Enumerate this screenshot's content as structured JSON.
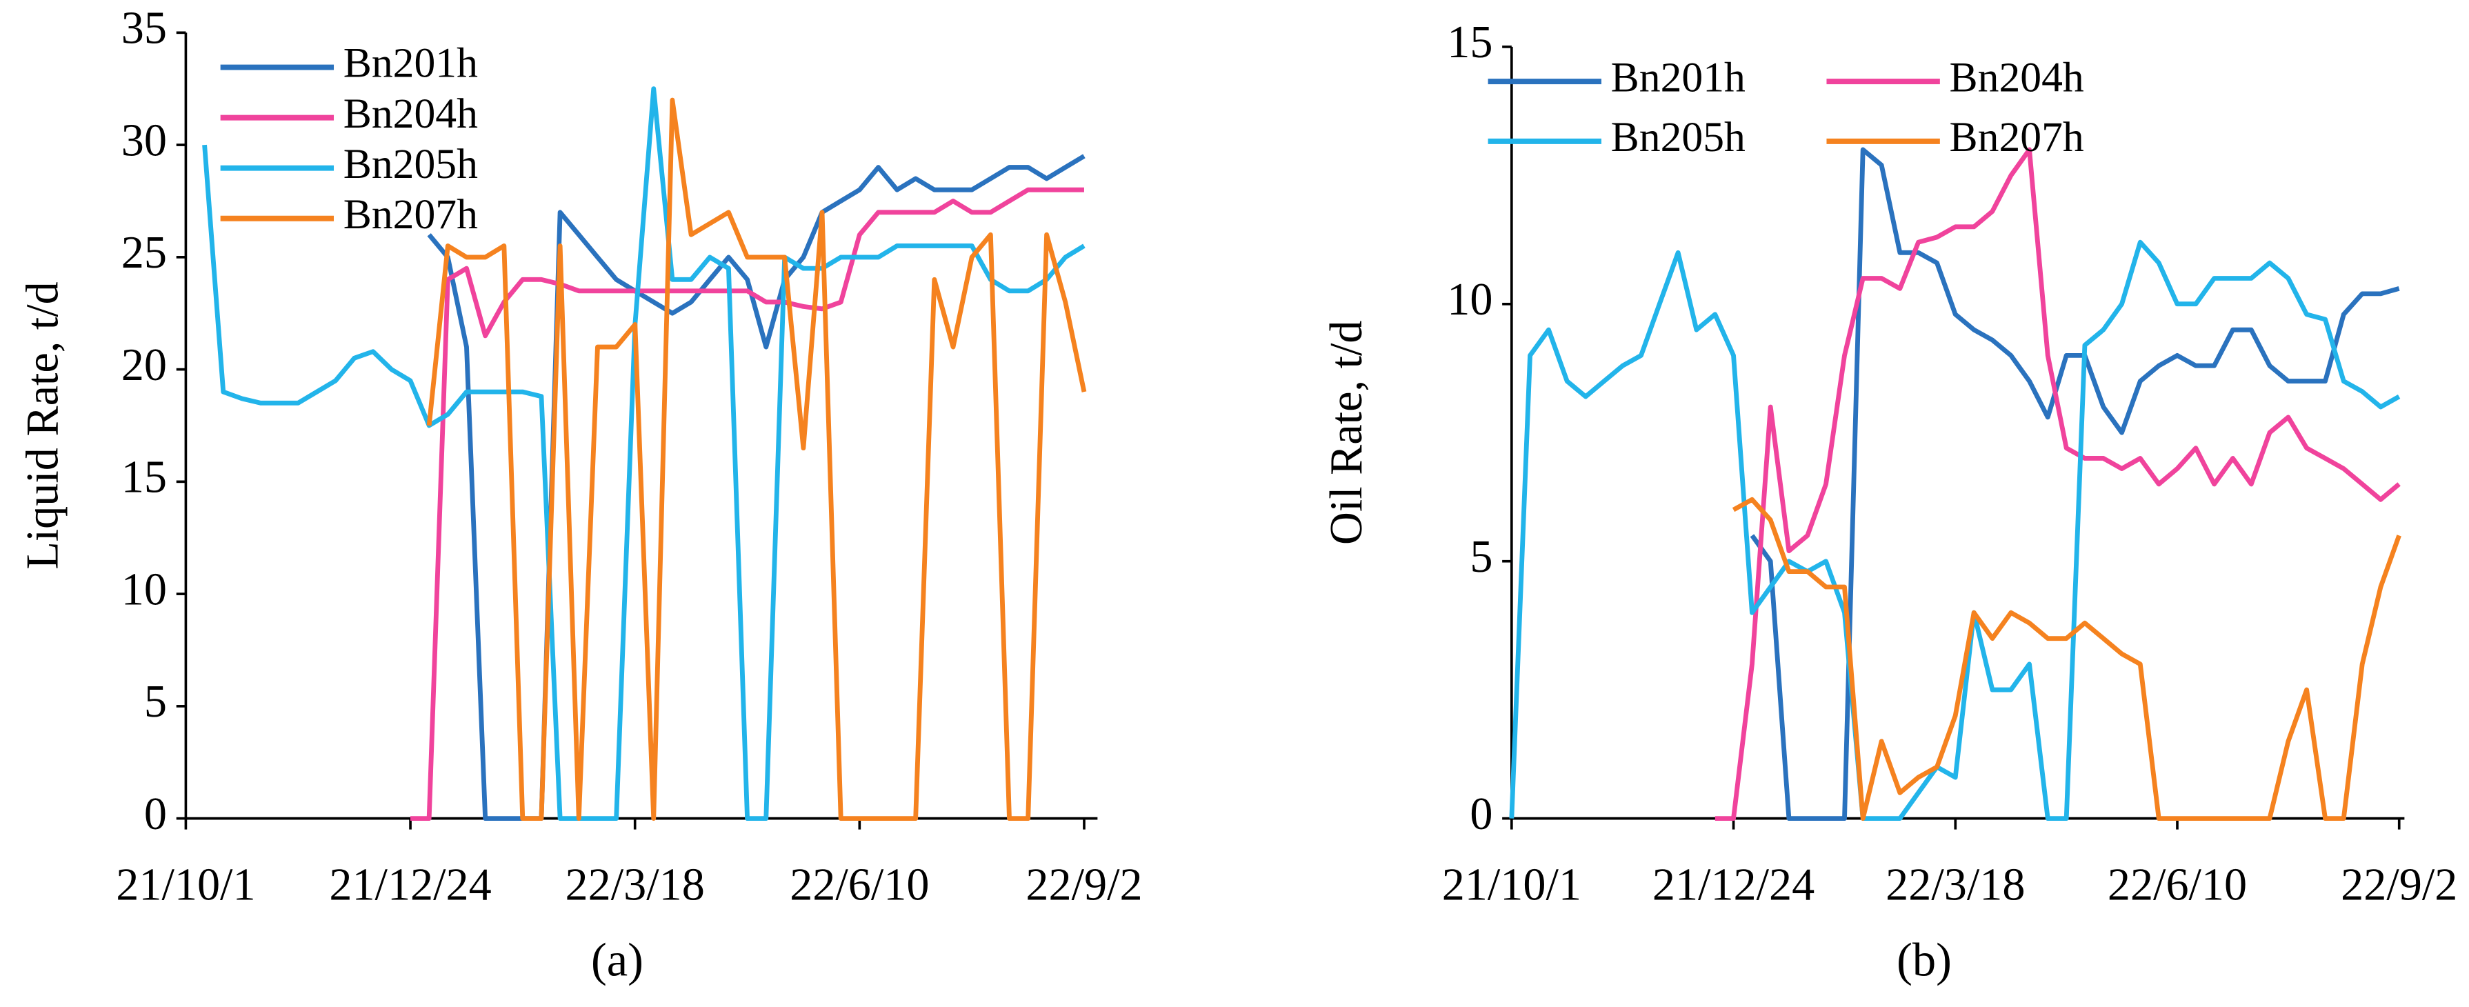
{
  "chart_data": [
    {
      "type": "line",
      "caption": "(a)",
      "ylabel": "Liquid Rate, t/d",
      "legend": "upper left",
      "legend_columns": 1,
      "xlim": [
        "21/10/1",
        "22/9/7"
      ],
      "xticks": [
        "21/10/1",
        "21/12/24",
        "22/3/18",
        "22/6/10",
        "22/9/2"
      ],
      "ylim": [
        0,
        35
      ],
      "yticks": [
        0,
        5,
        10,
        15,
        20,
        25,
        30,
        35
      ],
      "x": [
        "21/10/1",
        "21/10/8",
        "21/10/15",
        "21/10/22",
        "21/10/29",
        "21/11/5",
        "21/11/12",
        "21/11/19",
        "21/11/26",
        "21/12/3",
        "21/12/10",
        "21/12/17",
        "21/12/24",
        "21/12/31",
        "22/1/7",
        "22/1/14",
        "22/1/21",
        "22/1/28",
        "22/2/4",
        "22/2/11",
        "22/2/18",
        "22/2/25",
        "22/3/4",
        "22/3/11",
        "22/3/18",
        "22/3/25",
        "22/4/1",
        "22/4/8",
        "22/4/15",
        "22/4/22",
        "22/4/29",
        "22/5/6",
        "22/5/13",
        "22/5/20",
        "22/5/27",
        "22/6/3",
        "22/6/10",
        "22/6/17",
        "22/6/24",
        "22/7/1",
        "22/7/8",
        "22/7/15",
        "22/7/22",
        "22/7/29",
        "22/8/5",
        "22/8/12",
        "22/8/19",
        "22/8/26",
        "22/9/2"
      ],
      "series": [
        {
          "name": "Bn201h",
          "color": "#2a72be",
          "values": [
            null,
            null,
            null,
            null,
            null,
            null,
            null,
            null,
            null,
            null,
            null,
            null,
            null,
            26,
            25,
            21,
            0,
            0,
            0,
            0,
            27,
            26,
            25,
            24,
            23.5,
            23,
            22.5,
            23,
            24,
            25,
            24,
            21,
            24,
            25,
            27,
            27.5,
            28,
            29,
            28,
            28.5,
            28,
            28,
            28,
            28.5,
            29,
            29,
            28.5,
            29,
            29.5
          ]
        },
        {
          "name": "Bn204h",
          "color": "#f0439c",
          "values": [
            null,
            null,
            null,
            null,
            null,
            null,
            null,
            null,
            null,
            null,
            null,
            null,
            0,
            0,
            24,
            24.5,
            21.5,
            23,
            24,
            24,
            23.8,
            23.5,
            23.5,
            23.5,
            23.5,
            23.5,
            23.5,
            23.5,
            23.5,
            23.5,
            23.5,
            23,
            23,
            22.8,
            22.7,
            23,
            26,
            27,
            27,
            27,
            27,
            27.5,
            27,
            27,
            27.5,
            28,
            28,
            28,
            28
          ]
        },
        {
          "name": "Bn205h",
          "color": "#22b4ea",
          "values": [
            null,
            30,
            19,
            18.7,
            18.5,
            18.5,
            18.5,
            19,
            19.5,
            20.5,
            20.8,
            20,
            19.5,
            17.5,
            18,
            19,
            19,
            19,
            19,
            18.8,
            0,
            0,
            0,
            0,
            22,
            32.5,
            24,
            24,
            25,
            24.5,
            0,
            0,
            25,
            24.5,
            24.5,
            25,
            25,
            25,
            25.5,
            25.5,
            25.5,
            25.5,
            25.5,
            24,
            23.5,
            23.5,
            24,
            25,
            25.5
          ]
        },
        {
          "name": "Bn207h",
          "color": "#f5821f",
          "values": [
            null,
            null,
            null,
            null,
            null,
            null,
            null,
            null,
            null,
            null,
            null,
            null,
            null,
            17.5,
            25.5,
            25,
            25,
            25.5,
            0,
            0,
            25.5,
            0,
            21,
            21,
            22,
            0,
            32,
            26,
            26.5,
            27,
            25,
            25,
            25,
            16.5,
            27,
            0,
            0,
            0,
            0,
            0,
            24,
            21,
            25,
            26,
            0,
            0,
            26,
            23,
            19
          ]
        }
      ]
    },
    {
      "type": "line",
      "caption": "(b)",
      "ylabel": "Oil Rate, t/d",
      "legend": "upper center",
      "legend_columns": 2,
      "xlim": [
        "21/10/1",
        "22/9/4"
      ],
      "xticks": [
        "21/10/1",
        "21/12/24",
        "22/3/18",
        "22/6/10",
        "22/9/2"
      ],
      "ylim": [
        0,
        15
      ],
      "yticks": [
        0,
        5,
        10,
        15
      ],
      "x": [
        "21/10/1",
        "21/10/8",
        "21/10/15",
        "21/10/22",
        "21/10/29",
        "21/11/5",
        "21/11/12",
        "21/11/19",
        "21/11/26",
        "21/12/3",
        "21/12/10",
        "21/12/17",
        "21/12/24",
        "21/12/31",
        "22/1/7",
        "22/1/14",
        "22/1/21",
        "22/1/28",
        "22/2/4",
        "22/2/11",
        "22/2/18",
        "22/2/25",
        "22/3/4",
        "22/3/11",
        "22/3/18",
        "22/3/25",
        "22/4/1",
        "22/4/8",
        "22/4/15",
        "22/4/22",
        "22/4/29",
        "22/5/6",
        "22/5/13",
        "22/5/20",
        "22/5/27",
        "22/6/3",
        "22/6/10",
        "22/6/17",
        "22/6/24",
        "22/7/1",
        "22/7/8",
        "22/7/15",
        "22/7/22",
        "22/7/29",
        "22/8/5",
        "22/8/12",
        "22/8/19",
        "22/8/26",
        "22/9/2"
      ],
      "series": [
        {
          "name": "Bn201h",
          "color": "#2a72be",
          "values": [
            null,
            null,
            null,
            null,
            null,
            null,
            null,
            null,
            null,
            null,
            null,
            null,
            null,
            5.5,
            5,
            0,
            0,
            0,
            0,
            13,
            12.7,
            11,
            11,
            10.8,
            9.8,
            9.5,
            9.3,
            9,
            8.5,
            7.8,
            9,
            9,
            8,
            7.5,
            8.5,
            8.8,
            9,
            8.8,
            8.8,
            9.5,
            9.5,
            8.8,
            8.5,
            8.5,
            8.5,
            9.8,
            10.2,
            10.2,
            10.3
          ]
        },
        {
          "name": "Bn204h",
          "color": "#f0439c",
          "values": [
            null,
            null,
            null,
            null,
            null,
            null,
            null,
            null,
            null,
            null,
            null,
            0,
            0,
            3,
            8,
            5.2,
            5.5,
            6.5,
            9,
            10.5,
            10.5,
            10.3,
            11.2,
            11.3,
            11.5,
            11.5,
            11.8,
            12.5,
            13,
            9,
            7.2,
            7,
            7,
            6.8,
            7,
            6.5,
            6.8,
            7.2,
            6.5,
            7,
            6.5,
            7.5,
            7.8,
            7.2,
            7,
            6.8,
            6.5,
            6.2,
            6.5
          ]
        },
        {
          "name": "Bn205h",
          "color": "#22b4ea",
          "values": [
            0,
            9,
            9.5,
            8.5,
            8.2,
            8.5,
            8.8,
            9,
            10,
            11,
            9.5,
            9.8,
            9,
            4,
            4.5,
            5,
            4.8,
            5,
            4,
            0,
            0,
            0,
            0.5,
            1,
            0.8,
            4,
            2.5,
            2.5,
            3,
            0,
            0,
            9.2,
            9.5,
            10,
            11.2,
            10.8,
            10,
            10,
            10.5,
            10.5,
            10.5,
            10.8,
            10.5,
            9.8,
            9.7,
            8.5,
            8.3,
            8,
            8.2
          ]
        },
        {
          "name": "Bn207h",
          "color": "#f5821f",
          "values": [
            null,
            null,
            null,
            null,
            null,
            null,
            null,
            null,
            null,
            null,
            null,
            null,
            6,
            6.2,
            5.8,
            4.8,
            4.8,
            4.5,
            4.5,
            0,
            1.5,
            0.5,
            0.8,
            1,
            2,
            4,
            3.5,
            4,
            3.8,
            3.5,
            3.5,
            3.8,
            3.5,
            3.2,
            3,
            0,
            0,
            0,
            0,
            0,
            0,
            0,
            1.5,
            2.5,
            0,
            0,
            3,
            4.5,
            5.5
          ]
        }
      ]
    }
  ]
}
